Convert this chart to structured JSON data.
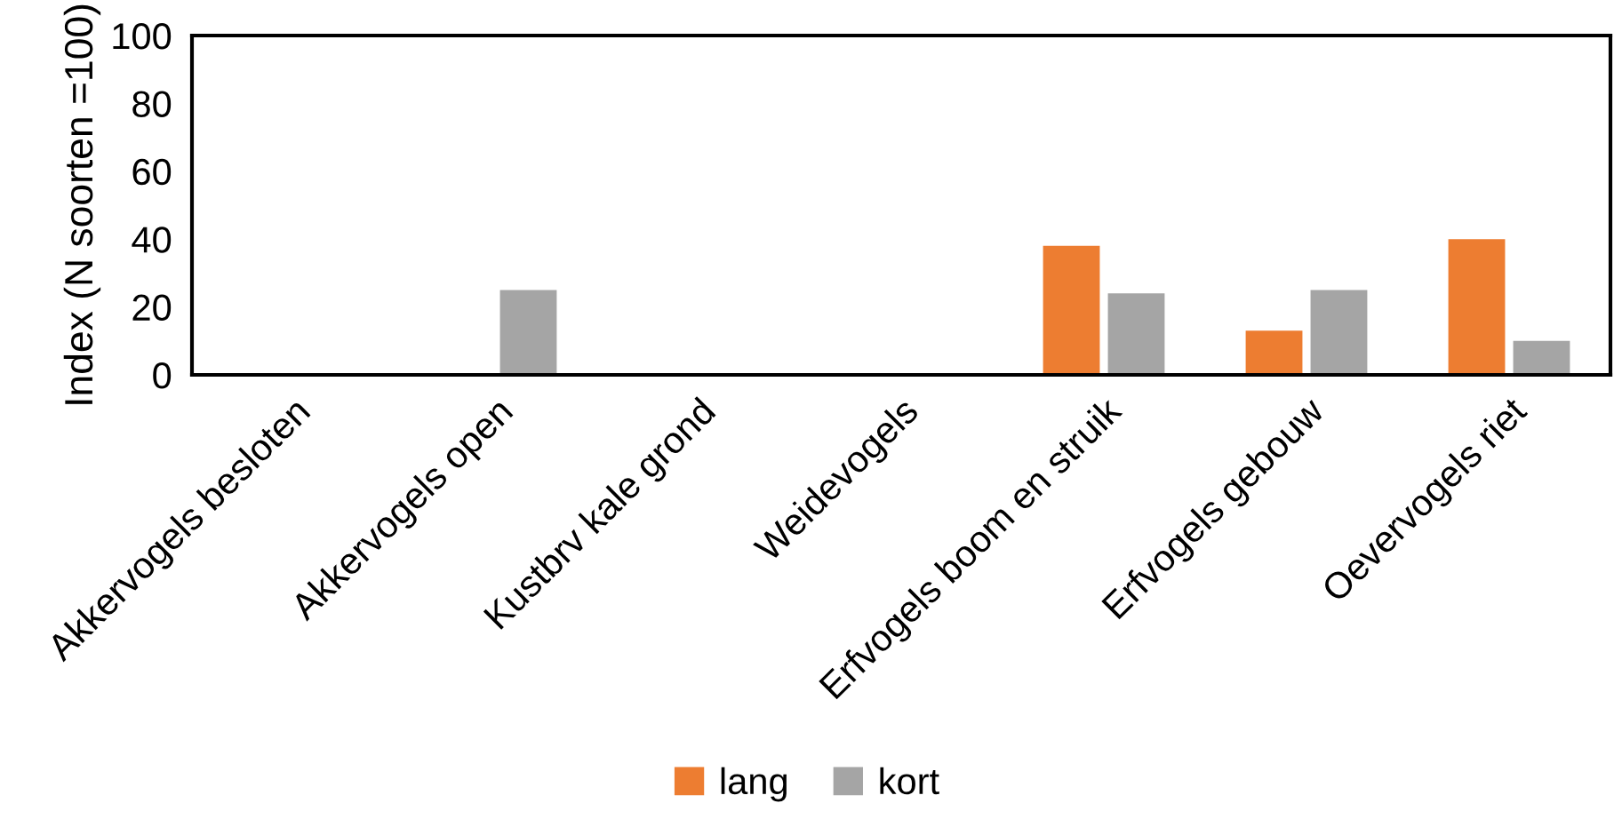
{
  "chart_data": {
    "type": "bar",
    "ylabel": "Index (N soorten =100)",
    "categories": [
      "Akkervogels besloten",
      "Akkervogels open",
      "Kustbrv kale grond",
      "Weidevogels",
      "Erfvogels boom en struik",
      "Erfvogels gebouw",
      "Oevervogels riet"
    ],
    "series": [
      {
        "name": "lang",
        "color": "#ed7d31",
        "values": [
          0,
          0,
          0,
          0,
          38,
          13,
          40
        ]
      },
      {
        "name": "kort",
        "color": "#a5a5a5",
        "values": [
          0,
          25,
          0,
          0,
          24,
          25,
          10
        ]
      }
    ],
    "ylim": [
      0,
      100
    ],
    "yticks": [
      0,
      20,
      40,
      60,
      80,
      100
    ],
    "grid": false,
    "legend": "bottom"
  }
}
